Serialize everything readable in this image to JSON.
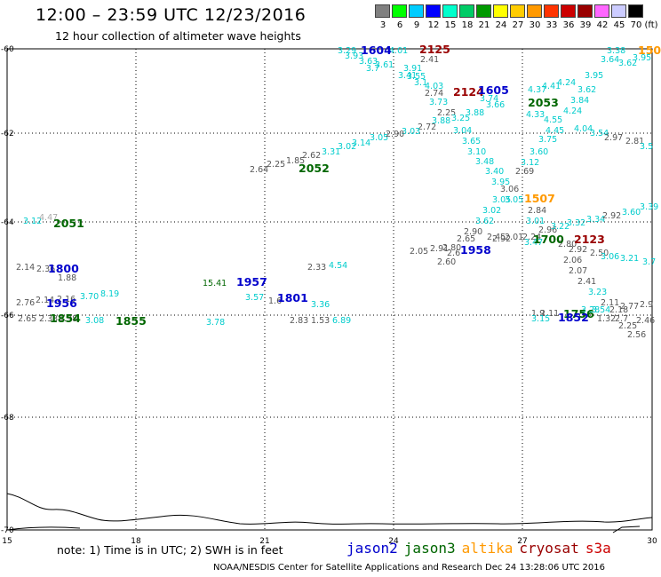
{
  "header": {
    "title": "12:00 – 23:59 UTC 12/23/2016",
    "subtitle": "12 hour collection of altimeter wave heights"
  },
  "scale": {
    "items": [
      {
        "label": "3",
        "color": "#808080"
      },
      {
        "label": "6",
        "color": "#00ff00"
      },
      {
        "label": "9",
        "color": "#00ccff"
      },
      {
        "label": "12",
        "color": "#0000ff"
      },
      {
        "label": "15",
        "color": "#00ffcc"
      },
      {
        "label": "18",
        "color": "#00cc66"
      },
      {
        "label": "21",
        "color": "#009900"
      },
      {
        "label": "24",
        "color": "#ffff00"
      },
      {
        "label": "27",
        "color": "#ffcc00"
      },
      {
        "label": "30",
        "color": "#ff9900"
      },
      {
        "label": "33",
        "color": "#ff3300"
      },
      {
        "label": "36",
        "color": "#cc0000"
      },
      {
        "label": "39",
        "color": "#990000"
      },
      {
        "label": "42",
        "color": "#ff66ff"
      },
      {
        "label": "45",
        "color": "#ccccff"
      },
      {
        "label": "70",
        "color": "#000000"
      }
    ],
    "unit": "(ft)"
  },
  "axes": {
    "y_ticks": [
      "-60",
      "-62",
      "-64",
      "-66",
      "-68",
      "-70"
    ],
    "x_ticks": [
      "15",
      "18",
      "21",
      "24",
      "27",
      "30"
    ]
  },
  "colors": {
    "jason2": "#0000cc",
    "jason3": "#006600",
    "altika": "#ff9900",
    "cryosat": "#990000",
    "s3a": "#cc0000",
    "cyan": "#00cccc",
    "gray": "#555555",
    "lightgray": "#aaaaaa"
  },
  "observations": [
    {
      "t": "3.29",
      "x": 380,
      "y": 60,
      "c": "cyan"
    },
    {
      "t": "3.93",
      "x": 388,
      "y": 66,
      "c": "cyan"
    },
    {
      "t": "3.63",
      "x": 404,
      "y": 72,
      "c": "cyan"
    },
    {
      "t": "3.61",
      "x": 422,
      "y": 76,
      "c": "cyan"
    },
    {
      "t": "4.01",
      "x": 438,
      "y": 60,
      "c": "cyan"
    },
    {
      "t": "3.7",
      "x": 412,
      "y": 80,
      "c": "cyan"
    },
    {
      "t": "2.41",
      "x": 473,
      "y": 70,
      "c": "gray"
    },
    {
      "t": "3.91",
      "x": 454,
      "y": 80,
      "c": "cyan"
    },
    {
      "t": "3.41",
      "x": 448,
      "y": 88,
      "c": "cyan"
    },
    {
      "t": "3.55",
      "x": 458,
      "y": 89,
      "c": "cyan"
    },
    {
      "t": "3.1",
      "x": 466,
      "y": 96,
      "c": "cyan"
    },
    {
      "t": "4.03",
      "x": 478,
      "y": 100,
      "c": "cyan"
    },
    {
      "t": "2.74",
      "x": 478,
      "y": 108,
      "c": "gray"
    },
    {
      "t": "3.73",
      "x": 483,
      "y": 118,
      "c": "cyan"
    },
    {
      "t": "2.25",
      "x": 492,
      "y": 130,
      "c": "gray"
    },
    {
      "t": "3.88",
      "x": 486,
      "y": 139,
      "c": "cyan"
    },
    {
      "t": "3.25",
      "x": 508,
      "y": 136,
      "c": "cyan"
    },
    {
      "t": "3.88",
      "x": 524,
      "y": 130,
      "c": "cyan"
    },
    {
      "t": "3.74",
      "x": 540,
      "y": 114,
      "c": "cyan"
    },
    {
      "t": "3.66",
      "x": 547,
      "y": 121,
      "c": "cyan"
    },
    {
      "t": "2.72",
      "x": 470,
      "y": 146,
      "c": "gray"
    },
    {
      "t": "3.03",
      "x": 452,
      "y": 151,
      "c": "cyan"
    },
    {
      "t": "3.04",
      "x": 510,
      "y": 150,
      "c": "cyan"
    },
    {
      "t": "4.37",
      "x": 594,
      "y": 104,
      "c": "cyan"
    },
    {
      "t": "4.41",
      "x": 610,
      "y": 100,
      "c": "cyan"
    },
    {
      "t": "4.24",
      "x": 627,
      "y": 96,
      "c": "cyan"
    },
    {
      "t": "3.62",
      "x": 650,
      "y": 104,
      "c": "cyan"
    },
    {
      "t": "3.84",
      "x": 642,
      "y": 116,
      "c": "cyan"
    },
    {
      "t": "4.33",
      "x": 592,
      "y": 132,
      "c": "cyan"
    },
    {
      "t": "4.55",
      "x": 612,
      "y": 138,
      "c": "cyan"
    },
    {
      "t": "4.24",
      "x": 634,
      "y": 128,
      "c": "cyan"
    },
    {
      "t": "4.45",
      "x": 614,
      "y": 150,
      "c": "cyan"
    },
    {
      "t": "4.04",
      "x": 646,
      "y": 148,
      "c": "cyan"
    },
    {
      "t": "3.54",
      "x": 664,
      "y": 153,
      "c": "cyan"
    },
    {
      "t": "3.38",
      "x": 683,
      "y": 60,
      "c": "cyan"
    },
    {
      "t": "3.64",
      "x": 676,
      "y": 70,
      "c": "cyan"
    },
    {
      "t": "3.62",
      "x": 696,
      "y": 74,
      "c": "cyan"
    },
    {
      "t": "3.95",
      "x": 712,
      "y": 68,
      "c": "cyan"
    },
    {
      "t": "3.95",
      "x": 658,
      "y": 88,
      "c": "cyan"
    },
    {
      "t": "2.81",
      "x": 704,
      "y": 162,
      "c": "gray"
    },
    {
      "t": "2.97",
      "x": 680,
      "y": 158,
      "c": "gray"
    },
    {
      "t": "3.5",
      "x": 720,
      "y": 168,
      "c": "cyan"
    },
    {
      "t": "3.75",
      "x": 606,
      "y": 160,
      "c": "cyan"
    },
    {
      "t": "3.65",
      "x": 520,
      "y": 162,
      "c": "cyan"
    },
    {
      "t": "3.10",
      "x": 526,
      "y": 174,
      "c": "cyan"
    },
    {
      "t": "3.60",
      "x": 596,
      "y": 174,
      "c": "cyan"
    },
    {
      "t": "3.48",
      "x": 535,
      "y": 185,
      "c": "cyan"
    },
    {
      "t": "3.12",
      "x": 586,
      "y": 186,
      "c": "cyan"
    },
    {
      "t": "3.40",
      "x": 546,
      "y": 196,
      "c": "cyan"
    },
    {
      "t": "2.69",
      "x": 580,
      "y": 196,
      "c": "gray"
    },
    {
      "t": "3.95",
      "x": 553,
      "y": 208,
      "c": "cyan"
    },
    {
      "t": "3.06",
      "x": 563,
      "y": 216,
      "c": "gray"
    },
    {
      "t": "3.05",
      "x": 554,
      "y": 228,
      "c": "cyan"
    },
    {
      "t": "3.05",
      "x": 568,
      "y": 228,
      "c": "cyan"
    },
    {
      "t": "3.02",
      "x": 543,
      "y": 240,
      "c": "cyan"
    },
    {
      "t": "2.84",
      "x": 594,
      "y": 240,
      "c": "gray"
    },
    {
      "t": "3.62",
      "x": 535,
      "y": 252,
      "c": "cyan"
    },
    {
      "t": "3.01",
      "x": 592,
      "y": 252,
      "c": "cyan"
    },
    {
      "t": "2.90",
      "x": 522,
      "y": 264,
      "c": "gray"
    },
    {
      "t": "2.96",
      "x": 606,
      "y": 262,
      "c": "gray"
    },
    {
      "t": "3.22",
      "x": 620,
      "y": 258,
      "c": "cyan"
    },
    {
      "t": "3.32",
      "x": 638,
      "y": 254,
      "c": "cyan"
    },
    {
      "t": "3.34",
      "x": 660,
      "y": 250,
      "c": "cyan"
    },
    {
      "t": "2.92",
      "x": 678,
      "y": 246,
      "c": "gray"
    },
    {
      "t": "3.60",
      "x": 700,
      "y": 242,
      "c": "cyan"
    },
    {
      "t": "3.39",
      "x": 720,
      "y": 236,
      "c": "cyan"
    },
    {
      "t": "2.92",
      "x": 554,
      "y": 272,
      "c": "gray"
    },
    {
      "t": "2.45",
      "x": 548,
      "y": 270,
      "c": "gray"
    },
    {
      "t": "2.01",
      "x": 568,
      "y": 270,
      "c": "gray"
    },
    {
      "t": "2.24",
      "x": 588,
      "y": 270,
      "c": "gray"
    },
    {
      "t": "3.47",
      "x": 590,
      "y": 276,
      "c": "cyan"
    },
    {
      "t": "2.80",
      "x": 628,
      "y": 278,
      "c": "gray"
    },
    {
      "t": "2.92",
      "x": 640,
      "y": 284,
      "c": "gray"
    },
    {
      "t": "2.50",
      "x": 664,
      "y": 288,
      "c": "gray"
    },
    {
      "t": "2.05",
      "x": 461,
      "y": 286,
      "c": "gray"
    },
    {
      "t": "2.91",
      "x": 484,
      "y": 283,
      "c": "gray"
    },
    {
      "t": "2.80",
      "x": 498,
      "y": 282,
      "c": "gray"
    },
    {
      "t": "2.65",
      "x": 514,
      "y": 272,
      "c": "gray"
    },
    {
      "t": "2.6",
      "x": 503,
      "y": 288,
      "c": "gray"
    },
    {
      "t": "2.60",
      "x": 492,
      "y": 298,
      "c": "gray"
    },
    {
      "t": "2.06",
      "x": 634,
      "y": 296,
      "c": "gray"
    },
    {
      "t": "3.06",
      "x": 676,
      "y": 292,
      "c": "cyan"
    },
    {
      "t": "3.21",
      "x": 698,
      "y": 294,
      "c": "cyan"
    },
    {
      "t": "3.7",
      "x": 723,
      "y": 298,
      "c": "cyan"
    },
    {
      "t": "2.07",
      "x": 640,
      "y": 308,
      "c": "gray"
    },
    {
      "t": "2.41",
      "x": 650,
      "y": 320,
      "c": "gray"
    },
    {
      "t": "3.23",
      "x": 662,
      "y": 332,
      "c": "cyan"
    },
    {
      "t": "2.11",
      "x": 676,
      "y": 344,
      "c": "gray"
    },
    {
      "t": "2.77",
      "x": 698,
      "y": 348,
      "c": "gray"
    },
    {
      "t": "2.9",
      "x": 720,
      "y": 346,
      "c": "gray"
    },
    {
      "t": "3.54",
      "x": 666,
      "y": 352,
      "c": "cyan"
    },
    {
      "t": "2.18",
      "x": 686,
      "y": 352,
      "c": "gray"
    },
    {
      "t": "2.11",
      "x": 608,
      "y": 356,
      "c": "gray"
    },
    {
      "t": "1.9",
      "x": 598,
      "y": 356,
      "c": "gray"
    },
    {
      "t": "3.15",
      "x": 598,
      "y": 362,
      "c": "cyan"
    },
    {
      "t": "3.28",
      "x": 654,
      "y": 352,
      "c": "cyan"
    },
    {
      "t": "1.32",
      "x": 672,
      "y": 362,
      "c": "gray"
    },
    {
      "t": "2.7",
      "x": 692,
      "y": 362,
      "c": "gray"
    },
    {
      "t": "2.46",
      "x": 716,
      "y": 364,
      "c": "gray"
    },
    {
      "t": "2.25",
      "x": 696,
      "y": 370,
      "c": "gray"
    },
    {
      "t": "2.56",
      "x": 706,
      "y": 380,
      "c": "gray"
    },
    {
      "t": "3.14",
      "x": 396,
      "y": 164,
      "c": "cyan"
    },
    {
      "t": "3.05",
      "x": 416,
      "y": 158,
      "c": "cyan"
    },
    {
      "t": "2.90",
      "x": 434,
      "y": 154,
      "c": "gray"
    },
    {
      "t": "3.02",
      "x": 380,
      "y": 168,
      "c": "cyan"
    },
    {
      "t": "3.31",
      "x": 362,
      "y": 174,
      "c": "cyan"
    },
    {
      "t": "2.62",
      "x": 340,
      "y": 178,
      "c": "gray"
    },
    {
      "t": "1.85",
      "x": 322,
      "y": 184,
      "c": "gray"
    },
    {
      "t": "2.25",
      "x": 300,
      "y": 188,
      "c": "gray"
    },
    {
      "t": "2.64",
      "x": 281,
      "y": 194,
      "c": "gray"
    },
    {
      "t": "3.12",
      "x": 26,
      "y": 252,
      "c": "cyan"
    },
    {
      "t": "4.47",
      "x": 44,
      "y": 248,
      "c": "lightgray"
    },
    {
      "t": "2.14",
      "x": 18,
      "y": 304,
      "c": "gray"
    },
    {
      "t": "2.36",
      "x": 41,
      "y": 306,
      "c": "gray"
    },
    {
      "t": "1.88",
      "x": 65,
      "y": 316,
      "c": "gray"
    },
    {
      "t": "2.33",
      "x": 346,
      "y": 304,
      "c": "gray"
    },
    {
      "t": "4.54",
      "x": 370,
      "y": 302,
      "c": "cyan"
    },
    {
      "t": "15.41",
      "x": 228,
      "y": 322,
      "c": "jason3"
    },
    {
      "t": "3.57",
      "x": 276,
      "y": 338,
      "c": "cyan"
    },
    {
      "t": "1.6",
      "x": 302,
      "y": 342,
      "c": "gray"
    },
    {
      "t": "3.36",
      "x": 350,
      "y": 346,
      "c": "cyan"
    },
    {
      "t": "2.76",
      "x": 18,
      "y": 344,
      "c": "gray"
    },
    {
      "t": "2.14",
      "x": 40,
      "y": 341,
      "c": "gray"
    },
    {
      "t": "2.16",
      "x": 64,
      "y": 340,
      "c": "gray"
    },
    {
      "t": "3.70",
      "x": 90,
      "y": 337,
      "c": "cyan"
    },
    {
      "t": "8.19",
      "x": 113,
      "y": 334,
      "c": "cyan"
    },
    {
      "t": "2.65",
      "x": 20,
      "y": 362,
      "c": "gray"
    },
    {
      "t": "2.33",
      "x": 44,
      "y": 362,
      "c": "gray"
    },
    {
      "t": "1.98",
      "x": 66,
      "y": 362,
      "c": "gray"
    },
    {
      "t": "3.08",
      "x": 96,
      "y": 364,
      "c": "cyan"
    },
    {
      "t": "3.78",
      "x": 232,
      "y": 366,
      "c": "cyan"
    },
    {
      "t": "2.83",
      "x": 326,
      "y": 364,
      "c": "gray"
    },
    {
      "t": "1.53",
      "x": 350,
      "y": 364,
      "c": "gray"
    },
    {
      "t": "6.89",
      "x": 374,
      "y": 364,
      "c": "cyan"
    }
  ],
  "passes": [
    {
      "t": "1604",
      "x": 406,
      "y": 61,
      "c": "jason2"
    },
    {
      "t": "2125",
      "x": 472,
      "y": 60,
      "c": "cryosat"
    },
    {
      "t": "150",
      "x": 718,
      "y": 61,
      "c": "altika"
    },
    {
      "t": "2124",
      "x": 510,
      "y": 108,
      "c": "cryosat"
    },
    {
      "t": "1605",
      "x": 538,
      "y": 106,
      "c": "jason2"
    },
    {
      "t": "2053",
      "x": 594,
      "y": 120,
      "c": "jason3"
    },
    {
      "t": "2052",
      "x": 336,
      "y": 194,
      "c": "jason3"
    },
    {
      "t": "1507",
      "x": 590,
      "y": 228,
      "c": "altika"
    },
    {
      "t": "2051",
      "x": 60,
      "y": 256,
      "c": "jason3"
    },
    {
      "t": "1700",
      "x": 600,
      "y": 274,
      "c": "jason3"
    },
    {
      "t": "2123",
      "x": 646,
      "y": 274,
      "c": "cryosat"
    },
    {
      "t": "1958",
      "x": 518,
      "y": 286,
      "c": "jason2"
    },
    {
      "t": "1800",
      "x": 54,
      "y": 307,
      "c": "jason2"
    },
    {
      "t": "1957",
      "x": 266,
      "y": 322,
      "c": "jason2"
    },
    {
      "t": "1801",
      "x": 312,
      "y": 340,
      "c": "jason2"
    },
    {
      "t": "1956",
      "x": 52,
      "y": 346,
      "c": "jason2"
    },
    {
      "t": "1854",
      "x": 56,
      "y": 363,
      "c": "jason3"
    },
    {
      "t": "1855",
      "x": 130,
      "y": 366,
      "c": "jason3"
    },
    {
      "t": "1756",
      "x": 634,
      "y": 358,
      "c": "jason3"
    },
    {
      "t": "1852",
      "x": 628,
      "y": 362,
      "c": "jason2"
    }
  ],
  "footer": {
    "note": "note:  1) Time is in UTC;  2) SWH is in feet",
    "credit": "NOAA/NESDIS Center for Satellite Applications and Research    Dec 24 13:28:06 UTC 2016"
  },
  "satellites": [
    {
      "name": "jason2",
      "c": "jason2"
    },
    {
      "name": "jason3",
      "c": "jason3"
    },
    {
      "name": "altika",
      "c": "altika"
    },
    {
      "name": "cryosat",
      "c": "cryosat"
    },
    {
      "name": "s3a",
      "c": "s3a"
    }
  ]
}
